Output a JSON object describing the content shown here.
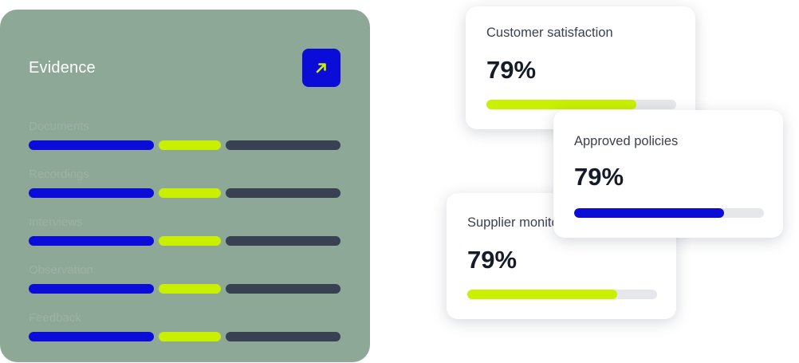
{
  "panel": {
    "title": "Evidence",
    "rows": [
      {
        "label": "Documents"
      },
      {
        "label": "Recordings"
      },
      {
        "label": "Interviews"
      },
      {
        "label": "Observation"
      },
      {
        "label": "Feedback"
      }
    ],
    "icon": "arrow-up-right-icon"
  },
  "cards": [
    {
      "label": "Customer satisfaction",
      "value": "79%",
      "progress": 0.79,
      "color": "#c8f000"
    },
    {
      "label": "Approved policies",
      "value": "79%",
      "progress": 0.79,
      "color": "#0c0cd8"
    },
    {
      "label": "Supplier monitoring",
      "value": "79%",
      "progress": 0.79,
      "color": "#c8f000"
    }
  ],
  "colors": {
    "panel_bg": "#8ea898",
    "blue": "#0c0cd8",
    "lime": "#c8f000",
    "slate": "#384152"
  }
}
